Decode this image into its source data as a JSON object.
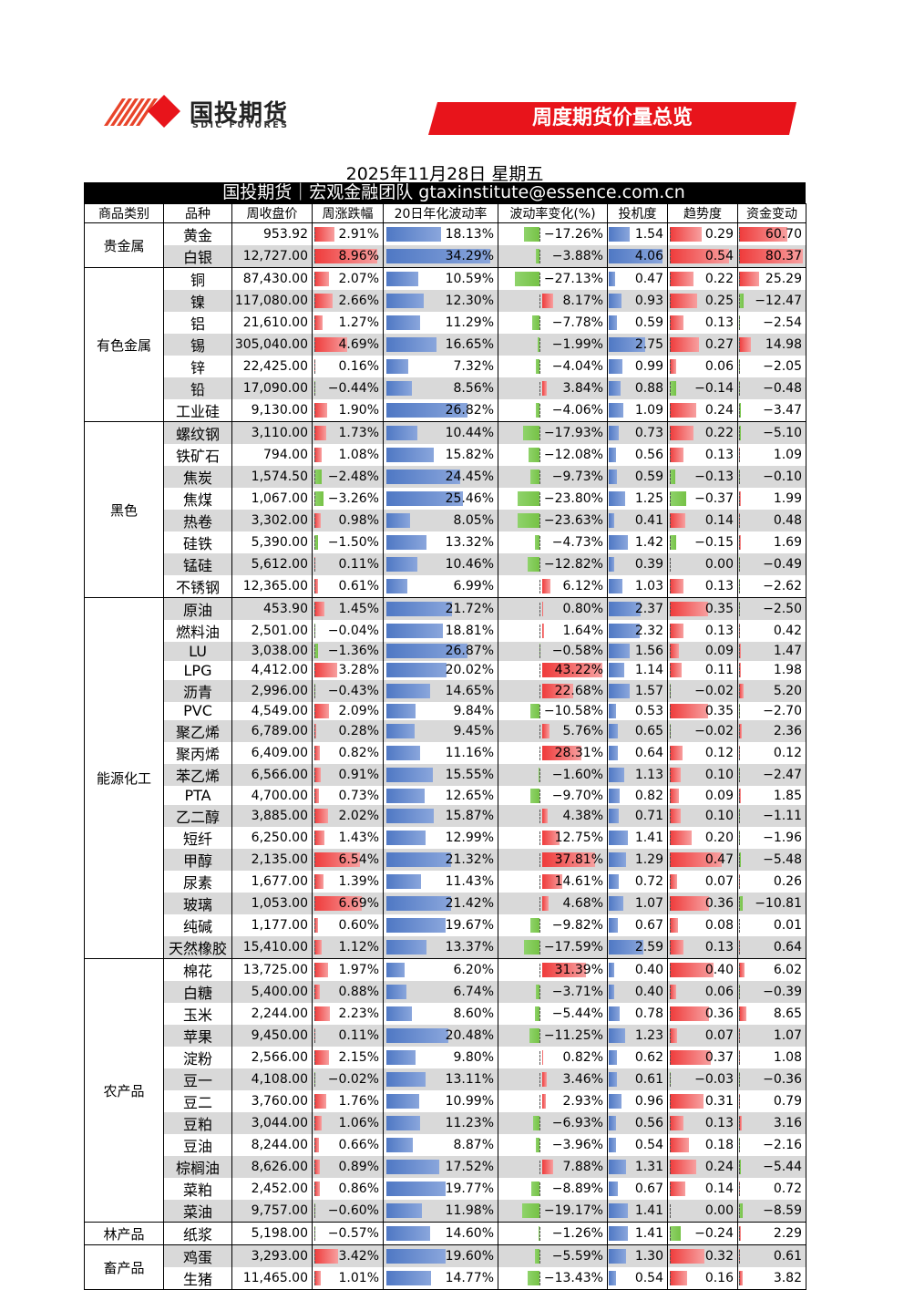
{
  "brand": {
    "name": "国投期货",
    "sub": "SDIC FUTURES"
  },
  "banner": {
    "title": "周度期货价量总览"
  },
  "date": "2025年11月28日 星期五",
  "team": "国投期货｜宏观金融团队 gtaxinstitute@essence.com.cn",
  "colors": {
    "banner_red": "#e8141b",
    "bar_blue": "#4f78c4",
    "bar_red": "#ef3b3b",
    "bar_green": "#76c246"
  },
  "headers": [
    "商品类别",
    "品种",
    "周收盘价",
    "周涨跌幅",
    "20日年化波动率",
    "波动率变化(%)",
    "投机度",
    "趋势度",
    "资金变动"
  ],
  "groups": [
    {
      "category": "贵金属",
      "rows": [
        [
          "黄金",
          "953.92",
          "2.91%",
          "18.13%",
          "−17.26%",
          "1.54",
          "0.29",
          "60.70"
        ],
        [
          "白银",
          "12,727.00",
          "8.96%",
          "34.29%",
          "−3.88%",
          "4.06",
          "0.54",
          "80.37"
        ]
      ]
    },
    {
      "category": "有色金属",
      "rows": [
        [
          "铜",
          "87,430.00",
          "2.07%",
          "10.59%",
          "−27.13%",
          "0.47",
          "0.22",
          "25.29"
        ],
        [
          "镍",
          "117,080.00",
          "2.66%",
          "12.30%",
          "8.17%",
          "0.93",
          "0.25",
          "−12.47"
        ],
        [
          "铝",
          "21,610.00",
          "1.27%",
          "11.29%",
          "−7.78%",
          "0.59",
          "0.13",
          "−2.54"
        ],
        [
          "锡",
          "305,040.00",
          "4.69%",
          "16.65%",
          "−1.99%",
          "2.75",
          "0.27",
          "14.98"
        ],
        [
          "锌",
          "22,425.00",
          "0.16%",
          "7.32%",
          "−4.04%",
          "0.99",
          "0.06",
          "−2.05"
        ],
        [
          "铅",
          "17,090.00",
          "−0.44%",
          "8.56%",
          "3.84%",
          "0.88",
          "−0.14",
          "−0.48"
        ],
        [
          "工业硅",
          "9,130.00",
          "1.90%",
          "26.82%",
          "−4.06%",
          "1.09",
          "0.24",
          "−3.47"
        ]
      ]
    },
    {
      "category": "黑色",
      "rows": [
        [
          "螺纹钢",
          "3,110.00",
          "1.73%",
          "10.44%",
          "−17.93%",
          "0.73",
          "0.22",
          "−5.10"
        ],
        [
          "铁矿石",
          "794.00",
          "1.08%",
          "15.82%",
          "−12.08%",
          "0.56",
          "0.13",
          "1.09"
        ],
        [
          "焦炭",
          "1,574.50",
          "−2.48%",
          "24.45%",
          "−9.73%",
          "0.59",
          "−0.13",
          "−0.10"
        ],
        [
          "焦煤",
          "1,067.00",
          "−3.26%",
          "25.46%",
          "−23.80%",
          "1.25",
          "−0.37",
          "1.99"
        ],
        [
          "热卷",
          "3,302.00",
          "0.98%",
          "8.05%",
          "−23.63%",
          "0.41",
          "0.14",
          "0.48"
        ],
        [
          "硅铁",
          "5,390.00",
          "−1.50%",
          "13.32%",
          "−4.73%",
          "1.42",
          "−0.15",
          "1.69"
        ],
        [
          "锰硅",
          "5,612.00",
          "0.11%",
          "10.46%",
          "−12.82%",
          "0.39",
          "0.00",
          "−0.49"
        ],
        [
          "不锈钢",
          "12,365.00",
          "0.61%",
          "6.99%",
          "6.12%",
          "1.03",
          "0.13",
          "−2.62"
        ]
      ]
    },
    {
      "category": "能源化工",
      "rows": [
        [
          "原油",
          "453.90",
          "1.45%",
          "21.72%",
          "0.80%",
          "2.37",
          "0.35",
          "−2.50"
        ],
        [
          "燃料油",
          "2,501.00",
          "−0.04%",
          "18.81%",
          "1.64%",
          "2.32",
          "0.13",
          "0.42"
        ],
        [
          "LU",
          "3,038.00",
          "−1.36%",
          "26.87%",
          "−0.58%",
          "1.56",
          "0.09",
          "1.47"
        ],
        [
          "LPG",
          "4,412.00",
          "3.28%",
          "20.02%",
          "43.22%",
          "1.14",
          "0.11",
          "1.98"
        ],
        [
          "沥青",
          "2,996.00",
          "−0.43%",
          "14.65%",
          "22.68%",
          "1.57",
          "−0.02",
          "5.20"
        ],
        [
          "PVC",
          "4,549.00",
          "2.09%",
          "9.84%",
          "−10.58%",
          "0.53",
          "0.35",
          "−2.70"
        ],
        [
          "聚乙烯",
          "6,789.00",
          "0.28%",
          "9.45%",
          "5.76%",
          "0.65",
          "−0.02",
          "2.36"
        ],
        [
          "聚丙烯",
          "6,409.00",
          "0.82%",
          "11.16%",
          "28.31%",
          "0.64",
          "0.12",
          "0.12"
        ],
        [
          "苯乙烯",
          "6,566.00",
          "0.91%",
          "15.55%",
          "−1.60%",
          "1.13",
          "0.10",
          "−2.47"
        ],
        [
          "PTA",
          "4,700.00",
          "0.73%",
          "12.65%",
          "−9.70%",
          "0.82",
          "0.09",
          "1.85"
        ],
        [
          "乙二醇",
          "3,885.00",
          "2.02%",
          "15.87%",
          "4.38%",
          "0.71",
          "0.10",
          "−1.11"
        ],
        [
          "短纤",
          "6,250.00",
          "1.43%",
          "12.99%",
          "12.75%",
          "1.41",
          "0.20",
          "−1.96"
        ],
        [
          "甲醇",
          "2,135.00",
          "6.54%",
          "21.32%",
          "37.81%",
          "1.29",
          "0.47",
          "−5.48"
        ],
        [
          "尿素",
          "1,677.00",
          "1.39%",
          "11.43%",
          "14.61%",
          "0.72",
          "0.07",
          "0.26"
        ],
        [
          "玻璃",
          "1,053.00",
          "6.69%",
          "21.42%",
          "4.68%",
          "1.07",
          "0.36",
          "−10.81"
        ],
        [
          "纯碱",
          "1,177.00",
          "0.60%",
          "19.67%",
          "−9.82%",
          "0.67",
          "0.08",
          "0.01"
        ],
        [
          "天然橡胶",
          "15,410.00",
          "1.12%",
          "13.37%",
          "−17.59%",
          "2.59",
          "0.13",
          "0.64"
        ]
      ]
    },
    {
      "category": "农产品",
      "rows": [
        [
          "棉花",
          "13,725.00",
          "1.97%",
          "6.20%",
          "31.39%",
          "0.40",
          "0.40",
          "6.02"
        ],
        [
          "白糖",
          "5,400.00",
          "0.88%",
          "6.74%",
          "−3.71%",
          "0.40",
          "0.06",
          "−0.39"
        ],
        [
          "玉米",
          "2,244.00",
          "2.23%",
          "8.60%",
          "−5.44%",
          "0.78",
          "0.36",
          "8.65"
        ],
        [
          "苹果",
          "9,450.00",
          "0.11%",
          "20.48%",
          "−11.25%",
          "1.23",
          "0.07",
          "1.07"
        ],
        [
          "淀粉",
          "2,566.00",
          "2.15%",
          "9.80%",
          "0.82%",
          "0.62",
          "0.37",
          "1.08"
        ],
        [
          "豆一",
          "4,108.00",
          "−0.02%",
          "13.11%",
          "3.46%",
          "0.61",
          "−0.03",
          "−0.36"
        ],
        [
          "豆二",
          "3,760.00",
          "1.76%",
          "10.99%",
          "2.93%",
          "0.96",
          "0.31",
          "0.79"
        ],
        [
          "豆粕",
          "3,044.00",
          "1.06%",
          "11.23%",
          "−6.93%",
          "0.56",
          "0.13",
          "3.16"
        ],
        [
          "豆油",
          "8,244.00",
          "0.66%",
          "8.87%",
          "−3.96%",
          "0.54",
          "0.18",
          "−2.16"
        ],
        [
          "棕榈油",
          "8,626.00",
          "0.89%",
          "17.52%",
          "7.88%",
          "1.31",
          "0.24",
          "−5.44"
        ],
        [
          "菜粕",
          "2,452.00",
          "0.86%",
          "19.77%",
          "−8.89%",
          "0.67",
          "0.14",
          "0.72"
        ],
        [
          "菜油",
          "9,757.00",
          "−0.60%",
          "11.98%",
          "−19.17%",
          "1.41",
          "0.00",
          "−8.59"
        ]
      ]
    },
    {
      "category": "林产品",
      "rows": [
        [
          "纸浆",
          "5,198.00",
          "−0.57%",
          "14.60%",
          "−1.26%",
          "1.41",
          "−0.24",
          "2.29"
        ]
      ]
    },
    {
      "category": "畜产品",
      "rows": [
        [
          "鸡蛋",
          "3,293.00",
          "3.42%",
          "19.60%",
          "−5.59%",
          "1.30",
          "0.32",
          "0.61"
        ],
        [
          "生猪",
          "11,465.00",
          "1.01%",
          "14.77%",
          "−13.43%",
          "0.54",
          "0.16",
          "3.82"
        ]
      ]
    }
  ]
}
